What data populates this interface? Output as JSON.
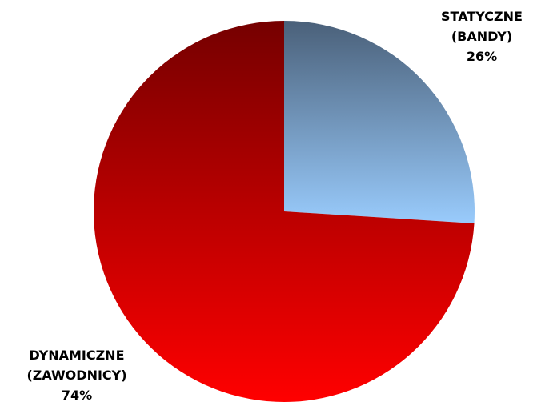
{
  "chart_data": {
    "type": "pie",
    "slices": [
      {
        "name_lines": [
          "STATYCZNE",
          "(BANDY)"
        ],
        "value": 26,
        "value_label": "26%",
        "color_top": "#4a6079",
        "color_bottom": "#99cbfc"
      },
      {
        "name_lines": [
          "DYNAMICZNE",
          "(ZAWODNICY)"
        ],
        "value": 74,
        "value_label": "74%",
        "color_top": "#750000",
        "color_bottom": "#ff0000"
      }
    ]
  }
}
